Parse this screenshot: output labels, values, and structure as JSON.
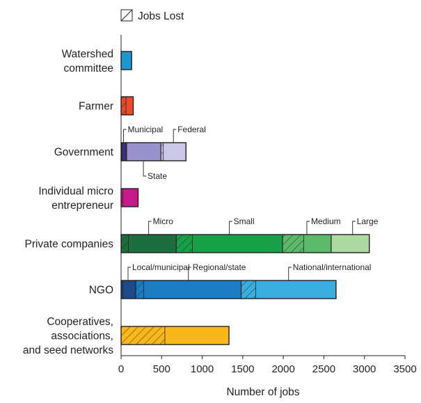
{
  "chart_data": {
    "type": "bar",
    "orientation": "horizontal",
    "stacked": true,
    "title": "",
    "xlabel": "Number of jobs",
    "ylabel": "",
    "xlim": [
      0,
      3500
    ],
    "xticks": [
      0,
      500,
      1000,
      1500,
      2000,
      2500,
      3000,
      3500
    ],
    "grid": false,
    "legend": {
      "label": "Jobs Lost",
      "pattern": "hatched",
      "position": "top-left"
    },
    "categories": [
      {
        "name": "Watershed committee",
        "lines": [
          "Watershed",
          "committee"
        ]
      },
      {
        "name": "Farmer",
        "lines": [
          "Farmer"
        ]
      },
      {
        "name": "Government",
        "lines": [
          "Government"
        ]
      },
      {
        "name": "Individual micro entrepreneur",
        "lines": [
          "Individual micro",
          "entrepreneur"
        ]
      },
      {
        "name": "Private companies",
        "lines": [
          "Private companies"
        ]
      },
      {
        "name": "NGO",
        "lines": [
          "NGO"
        ]
      },
      {
        "name": "Cooperatives, associations, and seed networks",
        "lines": [
          "Cooperatives,",
          "associations,",
          "and seed networks"
        ]
      }
    ],
    "bars": [
      {
        "category": "Watershed committee",
        "segments": [
          {
            "name": "",
            "lost": 0,
            "total": 130,
            "color": "#1e96cf"
          }
        ]
      },
      {
        "category": "Farmer",
        "segments": [
          {
            "name": "",
            "lost": 60,
            "total": 150,
            "color": "#ea4a2c"
          }
        ]
      },
      {
        "category": "Government",
        "segments": [
          {
            "name": "Municipal",
            "lost": 10,
            "total": 60,
            "color": "#3f2f85"
          },
          {
            "name": "State",
            "lost": 10,
            "total": 430,
            "color": "#9a92cc"
          },
          {
            "name": "Federal",
            "lost": 30,
            "total": 310,
            "color": "#cbc7e6"
          }
        ]
      },
      {
        "category": "Individual micro entrepreneur",
        "segments": [
          {
            "name": "",
            "lost": 20,
            "total": 210,
            "color": "#c7198a"
          }
        ]
      },
      {
        "category": "Private companies",
        "segments": [
          {
            "name": "Micro",
            "lost": 90,
            "total": 680,
            "color": "#1d6e3e"
          },
          {
            "name": "Small",
            "lost": 200,
            "total": 1310,
            "color": "#18a049"
          },
          {
            "name": "Medium",
            "lost": 260,
            "total": 600,
            "color": "#5aba6a"
          },
          {
            "name": "Large",
            "lost": 0,
            "total": 470,
            "color": "#acd9a2"
          }
        ]
      },
      {
        "category": "NGO",
        "segments": [
          {
            "name": "Local/municipal",
            "lost": 20,
            "total": 180,
            "color": "#1c4a8b"
          },
          {
            "name": "Regional/state",
            "lost": 100,
            "total": 1300,
            "color": "#1b7cc2"
          },
          {
            "name": "National/international",
            "lost": 180,
            "total": 1170,
            "color": "#3aaede"
          }
        ]
      },
      {
        "category": "Cooperatives, associations, and seed networks",
        "segments": [
          {
            "name": "",
            "lost": 540,
            "total": 1330,
            "color": "#f8b81b"
          }
        ]
      }
    ]
  }
}
